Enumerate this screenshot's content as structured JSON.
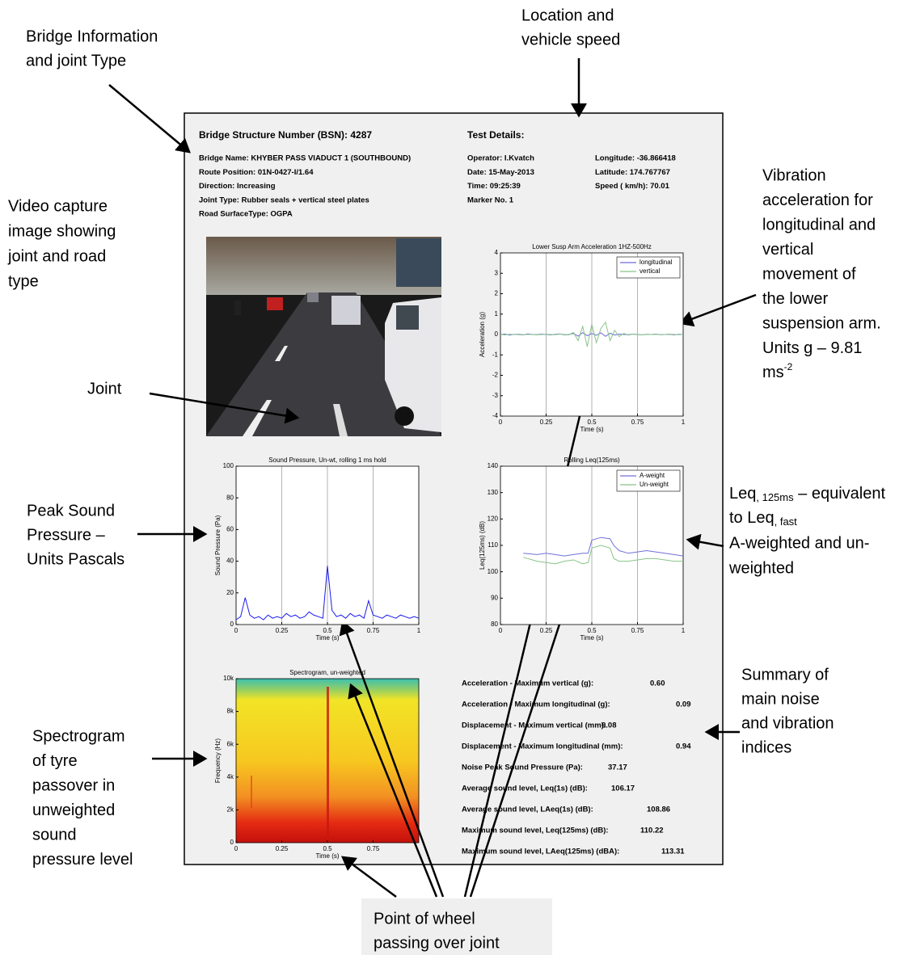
{
  "annotations": {
    "bridge_info": [
      "Bridge Information",
      "and joint Type"
    ],
    "location": [
      "Location and",
      "vehicle speed"
    ],
    "video": [
      "Video capture",
      "image showing",
      "joint and road",
      "type"
    ],
    "vibration": {
      "lines": [
        "Vibration",
        "acceleration  for",
        "longitudinal and",
        "vertical",
        "movement of",
        "the lower",
        "suspension arm.",
        "Units g – 9.81"
      ],
      "unit": "ms",
      "unit_sup": "-2"
    },
    "joint": [
      "Joint"
    ],
    "peak_sound": [
      "Peak Sound",
      "Pressure –",
      "Units Pascals"
    ],
    "leq": {
      "line1": "Leq",
      "line1_sub": ", 125ms",
      "line1_rest": " – equivalent",
      "line2": "to Leq",
      "line2_sub": ", fast",
      "lines": [
        "A-weighted and un-",
        "weighted"
      ]
    },
    "summary": [
      "Summary of",
      "main noise",
      "and vibration",
      "indices"
    ],
    "spectrogram": [
      "Spectrogram",
      "of tyre",
      "passover in",
      "unweighted",
      "sound",
      "pressure level"
    ],
    "wheel": [
      "Point of wheel",
      "passing over joint"
    ]
  },
  "document": {
    "header": {
      "bsn": "Bridge Structure Number (BSN): 4287",
      "test_details": "Test Details:",
      "left": [
        "Bridge Name: KHYBER PASS VIADUCT 1 (SOUTHBOUND)",
        "Route Position: 01N-0427-I/1.64",
        "Direction: Increasing",
        "Joint Type: Rubber seals + vertical steel plates",
        "Road SurfaceType: OGPA"
      ],
      "middle": [
        "Operator: I.Kvatch",
        "Date: 15-May-2013",
        "Time: 09:25:39",
        "Marker No. 1"
      ],
      "right": [
        "Longitude: -36.866418",
        "Latitude: 174.767767",
        "Speed ( km/h): 70.01"
      ]
    },
    "summary": {
      "rows": [
        {
          "label": "Acceleration - Maximum vertical (g):",
          "value": "0.60"
        },
        {
          "label": "Acceleration - Maximum longitudinal (g):",
          "value": "0.09"
        },
        {
          "label": "Displacement - Maximum vertical (mm):",
          "value": "6.08"
        },
        {
          "label": "Displacement - Maximum longitudinal (mm):",
          "value": "0.94"
        },
        {
          "label": "Noise Peak Sound Pressure (Pa):",
          "value": "37.17"
        },
        {
          "label": "Average sound level, Leq(1s) (dB):",
          "value": "106.17"
        },
        {
          "label": "Average sound level, LAeq(1s) (dB):",
          "value": "108.86"
        },
        {
          "label": "Maximum sound level, Leq(125ms) (dB):",
          "value": "110.22"
        },
        {
          "label": "Maximum sound level, LAeq(125ms) (dBA):",
          "value": "113.31"
        }
      ]
    }
  },
  "chart_data": [
    {
      "type": "line",
      "title": "Lower Susp Arm Acceleration 1HZ-500Hz",
      "x_label": "Time (s)",
      "y_label": "Acceleration (g)",
      "xlim": [
        0,
        1
      ],
      "xticks": [
        0,
        0.25,
        0.5,
        0.75,
        1
      ],
      "ylim": [
        -4,
        4
      ],
      "yticks": [
        -4,
        -3,
        -2,
        -1,
        0,
        1,
        2,
        3,
        4
      ],
      "grid": true,
      "legend": "upper right",
      "x": [
        0,
        0.025,
        0.05,
        0.075,
        0.1,
        0.125,
        0.15,
        0.175,
        0.2,
        0.225,
        0.25,
        0.275,
        0.3,
        0.325,
        0.35,
        0.375,
        0.4,
        0.425,
        0.45,
        0.475,
        0.5,
        0.525,
        0.55,
        0.575,
        0.6,
        0.625,
        0.65,
        0.675,
        0.7,
        0.725,
        0.75,
        0.775,
        0.8,
        0.825,
        0.85,
        0.875,
        0.9,
        0.925,
        0.95,
        0.975,
        1
      ],
      "series": [
        {
          "name": "longitudinal",
          "color": "#6a6ad8",
          "values": [
            0,
            0.02,
            -0.03,
            0.01,
            0,
            -0.02,
            0.03,
            0,
            -0.01,
            0.02,
            0,
            -0.02,
            0.01,
            0.03,
            -0.02,
            0,
            0.05,
            -0.08,
            0.09,
            -0.06,
            0.05,
            -0.04,
            0.08,
            -0.09,
            0.06,
            -0.03,
            0.02,
            0,
            -0.01,
            0.02,
            0,
            -0.02,
            0.01,
            0,
            0.02,
            -0.01,
            0,
            0.01,
            -0.02,
            0.01,
            0
          ]
        },
        {
          "name": "vertical",
          "color": "#88c488",
          "values": [
            0,
            -0.02,
            0.01,
            0,
            0.02,
            -0.01,
            0,
            0.01,
            -0.02,
            0,
            0.01,
            0,
            -0.01,
            0.02,
            0,
            -0.02,
            0.1,
            -0.3,
            0.4,
            -0.6,
            0.5,
            -0.4,
            0.3,
            0.6,
            -0.3,
            0.2,
            -0.1,
            0.05,
            -0.03,
            0.02,
            0,
            -0.02,
            0.01,
            0,
            0.01,
            -0.01,
            0,
            0.02,
            0,
            -0.01,
            0
          ]
        }
      ]
    },
    {
      "type": "line",
      "title": "Sound Pressure, Un-wt, rolling 1 ms hold",
      "x_label": "Time (s)",
      "y_label": "Sound Pressure (Pa)",
      "xlim": [
        0,
        1
      ],
      "xticks": [
        0,
        0.25,
        0.5,
        0.75,
        1
      ],
      "ylim": [
        0,
        100
      ],
      "yticks": [
        0,
        20,
        40,
        60,
        80,
        100
      ],
      "grid": true,
      "color": "#1a1aee",
      "x": [
        0,
        0.025,
        0.05,
        0.075,
        0.1,
        0.125,
        0.15,
        0.175,
        0.2,
        0.225,
        0.25,
        0.275,
        0.3,
        0.325,
        0.35,
        0.375,
        0.4,
        0.425,
        0.45,
        0.475,
        0.5,
        0.525,
        0.55,
        0.575,
        0.6,
        0.625,
        0.65,
        0.675,
        0.7,
        0.725,
        0.75,
        0.775,
        0.8,
        0.825,
        0.85,
        0.875,
        0.9,
        0.925,
        0.95,
        0.975,
        1
      ],
      "values": [
        3,
        5,
        17,
        6,
        4,
        5,
        3,
        6,
        4,
        5,
        4,
        7,
        5,
        6,
        4,
        5,
        8,
        6,
        5,
        4,
        37,
        9,
        5,
        6,
        4,
        7,
        5,
        6,
        4,
        15,
        6,
        5,
        4,
        6,
        5,
        4,
        6,
        5,
        4,
        5,
        4
      ]
    },
    {
      "type": "line",
      "title": "Rolling Leq(125ms)",
      "x_label": "Time (s)",
      "y_label": "Leq(125ms) (dB)",
      "xlim": [
        0,
        1
      ],
      "xticks": [
        0,
        0.25,
        0.5,
        0.75,
        1
      ],
      "ylim": [
        80,
        140
      ],
      "yticks": [
        80,
        90,
        100,
        110,
        120,
        130,
        140
      ],
      "grid": true,
      "legend": "upper right",
      "x": [
        0.125,
        0.2,
        0.25,
        0.3,
        0.35,
        0.4,
        0.45,
        0.48,
        0.5,
        0.55,
        0.6,
        0.62,
        0.65,
        0.7,
        0.75,
        0.8,
        0.85,
        0.9,
        0.95,
        1
      ],
      "series": [
        {
          "name": "A-weight",
          "color": "#7070d8",
          "values": [
            107,
            106.5,
            107,
            106.5,
            106,
            106.5,
            107,
            107,
            112,
            113,
            112.5,
            110,
            108,
            107,
            107.5,
            108,
            107.5,
            107,
            106.5,
            106
          ]
        },
        {
          "name": "Un-weight",
          "color": "#88c488",
          "values": [
            105.5,
            104,
            103.5,
            103,
            104,
            104.5,
            103,
            103.5,
            109,
            110,
            109,
            105,
            104,
            104,
            104.5,
            105,
            105,
            104.5,
            104,
            104
          ]
        }
      ]
    },
    {
      "type": "spectrogram",
      "title": "Spectrogram, un-weighted",
      "x_label": "Time (s)",
      "y_label": "Frequency (Hz)",
      "xlim": [
        0,
        1
      ],
      "xticks": [
        0,
        0.25,
        0.5,
        0.75
      ],
      "ylim": [
        0,
        10000
      ],
      "yticks": [
        0,
        {
          "value": 2000,
          "label": "2k"
        },
        {
          "value": 4000,
          "label": "4k"
        },
        {
          "value": 6000,
          "label": "6k"
        },
        {
          "value": 8000,
          "label": "8k"
        },
        {
          "value": 10000,
          "label": "10k"
        }
      ],
      "grid": false
    }
  ]
}
